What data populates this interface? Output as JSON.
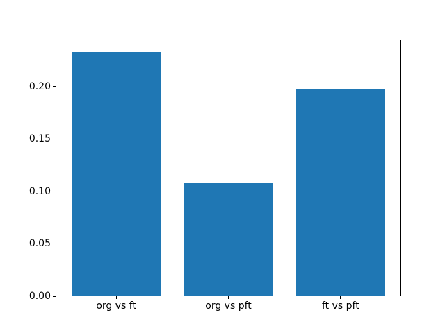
{
  "figure": {
    "background_color": "#ffffff"
  },
  "chart_data": {
    "type": "bar",
    "title": "",
    "xlabel": "",
    "ylabel": "",
    "categories": [
      "org vs ft",
      "org vs pft",
      "ft vs pft"
    ],
    "values": [
      0.233,
      0.108,
      0.197
    ],
    "yticks": [
      0.0,
      0.05,
      0.1,
      0.15,
      0.2
    ],
    "ytick_labels": [
      "0.00",
      "0.05",
      "0.10",
      "0.15",
      "0.20"
    ],
    "ylim": [
      0,
      0.24465
    ],
    "bar_width_fraction": 0.8,
    "x_margin_fraction": 0.05,
    "bar_color": "#1f77b4",
    "axis_color": "#000000",
    "text_color": "#000000",
    "grid": false,
    "legend": null
  }
}
